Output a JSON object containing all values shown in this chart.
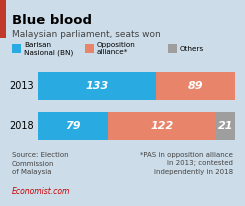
{
  "title": "Blue blood",
  "subtitle": "Malaysian parliament, seats won",
  "background_color": "#ccdce8",
  "years": [
    "2013",
    "2018"
  ],
  "bn_values": [
    133,
    79
  ],
  "opposition_values": [
    89,
    122
  ],
  "others_values": [
    0,
    21
  ],
  "total_seats": 222,
  "bn_color": "#29abe2",
  "opposition_color": "#e8846a",
  "others_color": "#9e9e9e",
  "source_text": "Source: Election\nCommission\nof Malaysia",
  "footnote_text": "*PAS in opposition alliance\nin 2013; contested\nindependently in 2018",
  "economist_text": "Economist.com",
  "legend_labels": [
    "Barisan\nNasional (BN)",
    "Opposition\nalliance*",
    "Others"
  ],
  "red_bar_color": "#c0392b",
  "red_bar_width": 6
}
